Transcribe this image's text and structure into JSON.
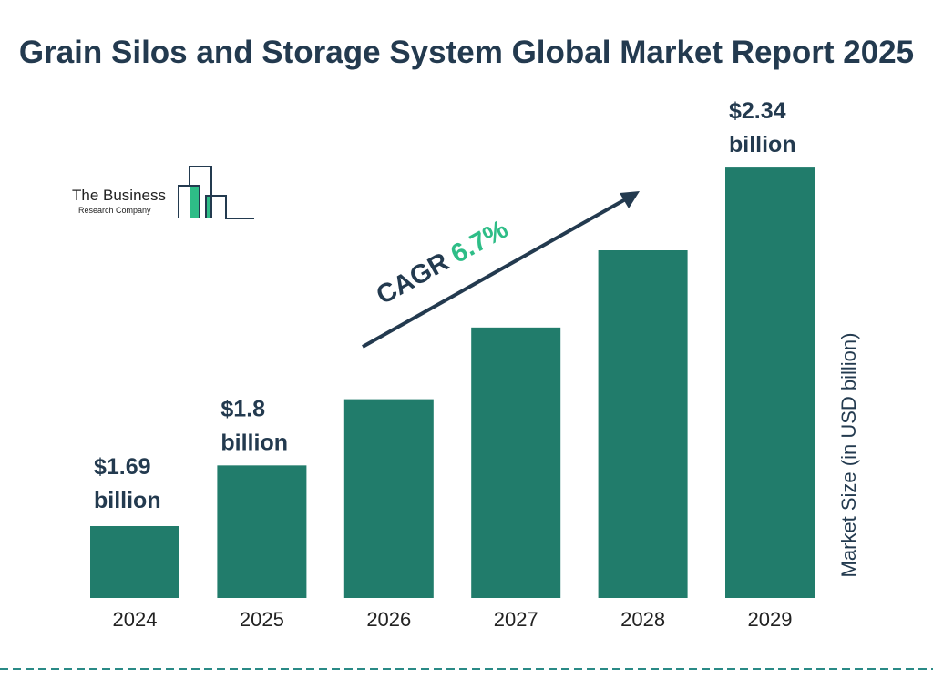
{
  "chart_data": {
    "type": "bar",
    "title": "Grain Silos and Storage System Global Market Report 2025",
    "categories": [
      "2024",
      "2025",
      "2026",
      "2027",
      "2028",
      "2029"
    ],
    "values": [
      1.69,
      1.8,
      1.92,
      2.05,
      2.19,
      2.34
    ],
    "data_labels": [
      "$1.69 billion",
      "$1.8 billion",
      "",
      "",
      "",
      "$2.34 billion"
    ],
    "data_labels_lines": [
      [
        "$1.69",
        "billion"
      ],
      [
        "$1.8",
        "billion"
      ],
      null,
      null,
      null,
      [
        "$2.34",
        "billion"
      ]
    ],
    "ylabel": "Market Size (in USD billion)",
    "xlabel": "",
    "annotation": {
      "label": "CAGR",
      "value": "6.7%"
    },
    "grid": false,
    "colors": {
      "bar": "#217c6b",
      "title": "#233a4f",
      "cagr": "#2ebd87",
      "divider": "#2a8a86"
    }
  },
  "logo": {
    "line1": "The Business",
    "line2": "Research Company"
  }
}
